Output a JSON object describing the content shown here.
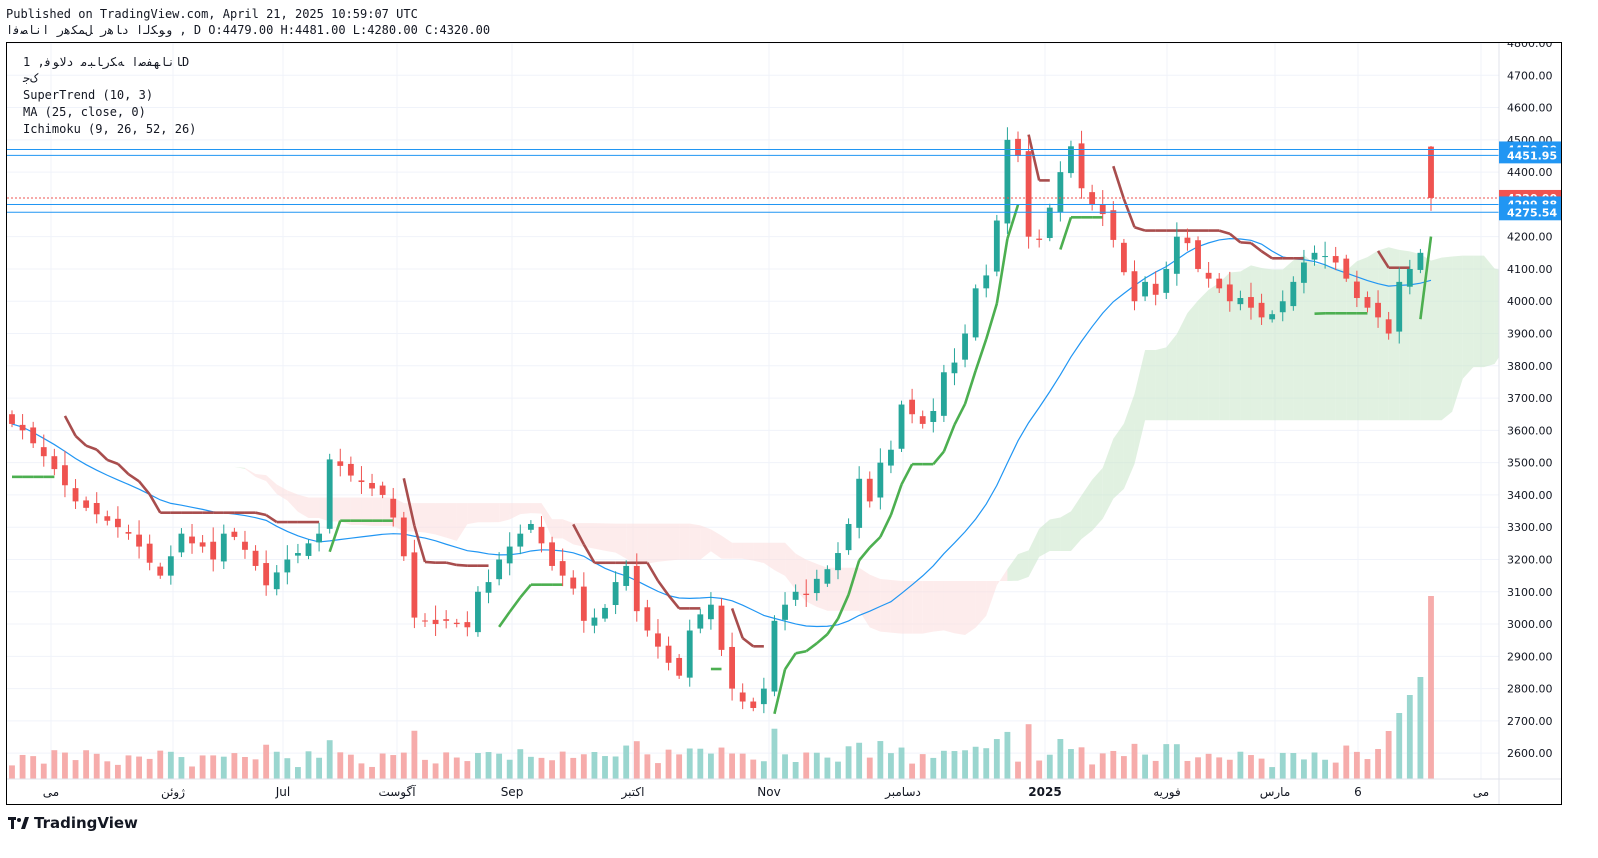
{
  "header": {
    "published": "Published on TradingView.com, April 21, 2025 10:59:07 UTC",
    "symbol_line": "ﻭﻮﮑﻟﺍ ﺩﺎﻫﺭ ﻞﻤﮑﻫﺭ ﺍﻧﺎﺼﻓﺍ ,  D  O:4479.00  H:4481.00  L:4280.00  C:4320.00"
  },
  "legend": {
    "symbol": "ﺎﻧﺎﻬﻔﺻﺍ ﻪﮑﺭﺎﺒﻣ ﺩﻻﻮﻓ, 1D",
    "exchange": "ﮎﺟ",
    "supertrend": "SuperTrend (10, 3)",
    "ma": "MA (25, close, 0)",
    "ichimoku": "Ichimoku (9, 26, 52, 26)"
  },
  "branding": {
    "logo_text": "TradingView"
  },
  "colors": {
    "up": "#26a69a",
    "down": "#ef5350",
    "supertrend_up": "#4caf50",
    "supertrend_down": "#a84d4d",
    "ma": "#2196f3",
    "cloud_green": "#c8e6c9",
    "cloud_red": "#fcdcdc",
    "hline": "#2196f3",
    "price": "#ef5350"
  },
  "chart_data": {
    "type": "candlestick",
    "timeframe": "1D",
    "ylim": [
      2520,
      4800
    ],
    "y_ticks": [
      2600,
      2700,
      2800,
      2900,
      3000,
      3100,
      3200,
      3300,
      3400,
      3500,
      3600,
      3700,
      3800,
      3900,
      4000,
      4100,
      4200,
      4300,
      4400,
      4500,
      4600,
      4700,
      4800
    ],
    "x_labels": [
      "می",
      "ژوئن",
      "Jul",
      "آگوست",
      "Sep",
      "اکتبر",
      "Nov",
      "دسامبر",
      "2025",
      "فوریه",
      "مارس",
      "6",
      "می"
    ],
    "x_label_bold": [
      false,
      false,
      false,
      false,
      false,
      false,
      false,
      false,
      true,
      false,
      false,
      false,
      false
    ],
    "price_labels": [
      {
        "text": "4470.20",
        "value": 4470.2,
        "color": "#2196f3"
      },
      {
        "text": "4451.95",
        "value": 4451.95,
        "color": "#2196f3"
      },
      {
        "text": "4320.00",
        "value": 4320.0,
        "color": "#ef5350"
      },
      {
        "text": "4299.88",
        "value": 4299.88,
        "color": "#2196f3"
      },
      {
        "text": "4275.54",
        "value": 4275.54,
        "color": "#2196f3"
      }
    ],
    "ohlc_last": {
      "open": 4479.0,
      "high": 4481.0,
      "low": 4280.0,
      "close": 4320.0
    },
    "close": [
      3620,
      3600,
      3560,
      3520,
      3480,
      3430,
      3380,
      3360,
      3340,
      3320,
      3300,
      3280,
      3240,
      3190,
      3150,
      3210,
      3280,
      3250,
      3240,
      3200,
      3280,
      3270,
      3230,
      3180,
      3120,
      3160,
      3200,
      3220,
      3250,
      3280,
      3510,
      3490,
      3460,
      3440,
      3420,
      3400,
      3330,
      3210,
      3020,
      3010,
      3000,
      3010,
      3000,
      2990,
      3100,
      3130,
      3200,
      3240,
      3280,
      3310,
      3250,
      3180,
      3150,
      3110,
      3010,
      3020,
      3050,
      3130,
      3180,
      3040,
      2980,
      2930,
      2880,
      2840,
      2980,
      3030,
      3060,
      2920,
      2800,
      2760,
      2740,
      2800,
      3010,
      3060,
      3100,
      3090,
      3140,
      3170,
      3220,
      3310,
      3450,
      3380,
      3500,
      3540,
      3680,
      3650,
      3620,
      3660,
      3780,
      3810,
      3900,
      4040,
      4080,
      4250,
      4500,
      4450,
      4200,
      4190,
      4290,
      4400,
      4480,
      4350,
      4300,
      4270,
      4190,
      4090,
      4000,
      4060,
      4020,
      4100,
      4200,
      4180,
      4100,
      4070,
      4040,
      4000,
      4010,
      3980,
      3950,
      3960,
      4000,
      4060,
      4120,
      4150,
      4140,
      4120,
      4070,
      4010,
      3980,
      3950,
      3900,
      4060,
      4100,
      4150,
      4320
    ]
  }
}
